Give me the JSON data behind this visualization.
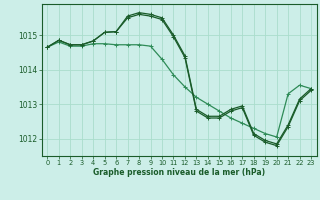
{
  "bg_color": "#cceee8",
  "grid_color": "#aaddcc",
  "line_color_dark": "#1a5c2a",
  "line_color_light": "#2e8b57",
  "xlabel": "Graphe pression niveau de la mer (hPa)",
  "ylim": [
    1011.5,
    1015.9
  ],
  "xlim": [
    -0.5,
    23.5
  ],
  "yticks": [
    1012,
    1013,
    1014,
    1015
  ],
  "xticks": [
    0,
    1,
    2,
    3,
    4,
    5,
    6,
    7,
    8,
    9,
    10,
    11,
    12,
    13,
    14,
    15,
    16,
    17,
    18,
    19,
    20,
    21,
    22,
    23
  ],
  "series1_x": [
    0,
    1,
    2,
    3,
    4,
    5,
    6,
    7,
    8,
    9,
    10,
    11,
    12,
    13,
    14,
    15,
    16,
    17,
    18,
    19,
    20,
    21,
    22,
    23
  ],
  "series1_y": [
    1014.65,
    1014.85,
    1014.72,
    1014.72,
    1014.83,
    1015.08,
    1015.1,
    1015.55,
    1015.65,
    1015.6,
    1015.5,
    1015.0,
    1014.4,
    1012.85,
    1012.65,
    1012.65,
    1012.85,
    1012.95,
    1012.15,
    1011.95,
    1011.85,
    1012.4,
    1013.15,
    1013.45
  ],
  "series2_x": [
    0,
    1,
    2,
    3,
    4,
    5,
    6,
    7,
    8,
    9,
    10,
    11,
    12,
    13,
    14,
    15,
    16,
    17,
    18,
    19,
    20,
    21,
    22,
    23
  ],
  "series2_y": [
    1014.65,
    1014.85,
    1014.72,
    1014.72,
    1014.83,
    1015.08,
    1015.1,
    1015.5,
    1015.6,
    1015.55,
    1015.45,
    1014.95,
    1014.35,
    1012.8,
    1012.6,
    1012.6,
    1012.8,
    1012.9,
    1012.1,
    1011.9,
    1011.8,
    1012.35,
    1013.1,
    1013.4
  ],
  "series3_x": [
    0,
    1,
    2,
    3,
    4,
    5,
    6,
    7,
    8,
    9,
    10,
    11,
    12,
    13,
    14,
    15,
    16,
    17,
    18,
    19,
    20,
    21,
    22,
    23
  ],
  "series3_y": [
    1014.65,
    1014.8,
    1014.68,
    1014.68,
    1014.75,
    1014.75,
    1014.72,
    1014.72,
    1014.72,
    1014.68,
    1014.3,
    1013.85,
    1013.5,
    1013.2,
    1013.0,
    1012.8,
    1012.6,
    1012.45,
    1012.3,
    1012.15,
    1012.05,
    1013.3,
    1013.55,
    1013.45
  ]
}
